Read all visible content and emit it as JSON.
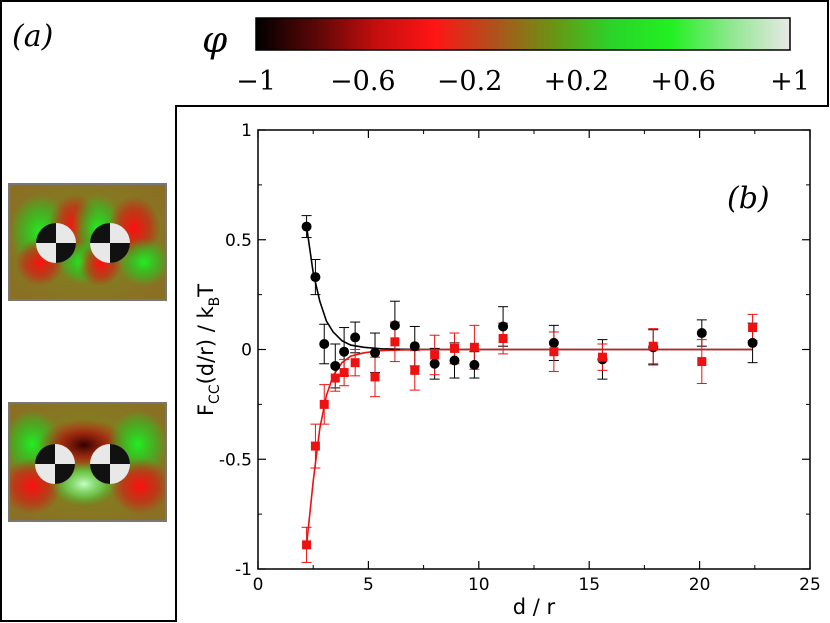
{
  "panel_a_label": "(a)",
  "panel_b_label": "(b)",
  "colorbar": {
    "symbol": "φ",
    "ticks": [
      "−1",
      "−0.6",
      "−0.2",
      "+0.2",
      "+0.6",
      "+1"
    ],
    "colors": [
      "#000000",
      "#5a0707",
      "#c20e0e",
      "#ff1515",
      "#b0501c",
      "#6a9414",
      "#2ad42a",
      "#22f022",
      "#8ee88e",
      "#e8e8e8"
    ]
  },
  "snapshots": [
    {
      "name": "snapshot-separated"
    },
    {
      "name": "snapshot-close"
    }
  ],
  "chart_data": {
    "type": "scatter",
    "title": "",
    "xlabel": "d / r",
    "ylabel_main": "F",
    "ylabel_sub1": "CC",
    "ylabel_mid": "(d/r) / k",
    "ylabel_sub2": "B",
    "ylabel_end": "T",
    "xlim": [
      0,
      25
    ],
    "ylim": [
      -1,
      1
    ],
    "xticks": [
      0,
      5,
      10,
      15,
      20,
      25
    ],
    "yticks": [
      -1,
      -0.5,
      0,
      0.5,
      1
    ],
    "xtick_labels": [
      "0",
      "5",
      "10",
      "15",
      "20",
      "25"
    ],
    "ytick_labels": [
      "-1",
      "-0.5",
      "0",
      "0.5",
      "1"
    ],
    "series": [
      {
        "name": "black circles",
        "marker": "circle",
        "color": "#000000",
        "x": [
          2.2,
          2.6,
          3.0,
          3.5,
          3.9,
          4.4,
          5.3,
          6.2,
          7.1,
          8.0,
          8.9,
          9.8,
          11.1,
          13.4,
          15.6,
          17.9,
          20.1,
          22.4
        ],
        "y": [
          0.56,
          0.33,
          0.025,
          -0.075,
          -0.01,
          0.055,
          -0.015,
          0.11,
          0.015,
          -0.065,
          -0.05,
          -0.07,
          0.105,
          0.03,
          -0.045,
          0.01,
          0.075,
          0.03
        ],
        "err": [
          0.05,
          0.08,
          0.09,
          0.1,
          0.11,
          0.07,
          0.09,
          0.11,
          0.09,
          0.07,
          0.08,
          0.06,
          0.09,
          0.08,
          0.09,
          0.08,
          0.06,
          0.09
        ],
        "fit_x": [
          2.2,
          2.5,
          2.8,
          3.1,
          3.4,
          3.8,
          4.2,
          4.8,
          5.6,
          6.5,
          8,
          10,
          14,
          18,
          22.4
        ],
        "fit_y": [
          0.56,
          0.35,
          0.22,
          0.13,
          0.08,
          0.04,
          0.02,
          0.01,
          0.003,
          0.001,
          0,
          0,
          0,
          0,
          0
        ]
      },
      {
        "name": "red squares",
        "marker": "square",
        "color": "#ee1111",
        "x": [
          2.2,
          2.6,
          3.0,
          3.5,
          3.9,
          4.4,
          5.3,
          6.2,
          7.1,
          8.0,
          8.9,
          9.8,
          11.1,
          13.4,
          15.6,
          17.9,
          20.1,
          22.4
        ],
        "y": [
          -0.89,
          -0.44,
          -0.25,
          -0.13,
          -0.105,
          -0.06,
          -0.125,
          0.035,
          -0.095,
          -0.025,
          0.005,
          0.01,
          0.05,
          -0.01,
          -0.035,
          0.015,
          -0.055,
          0.1
        ],
        "err": [
          0.08,
          0.1,
          0.09,
          0.06,
          0.06,
          0.06,
          0.09,
          0.09,
          0.09,
          0.09,
          0.07,
          0.1,
          0.07,
          0.09,
          0.06,
          0.08,
          0.1,
          0.06
        ],
        "fit_x": [
          2.2,
          2.5,
          2.8,
          3.1,
          3.4,
          3.8,
          4.2,
          4.8,
          5.6,
          6.5,
          8,
          10,
          14,
          18,
          22.4
        ],
        "fit_y": [
          -0.89,
          -0.6,
          -0.36,
          -0.21,
          -0.12,
          -0.06,
          -0.03,
          -0.015,
          -0.005,
          -0.002,
          0,
          0,
          0,
          0,
          0
        ]
      }
    ]
  }
}
